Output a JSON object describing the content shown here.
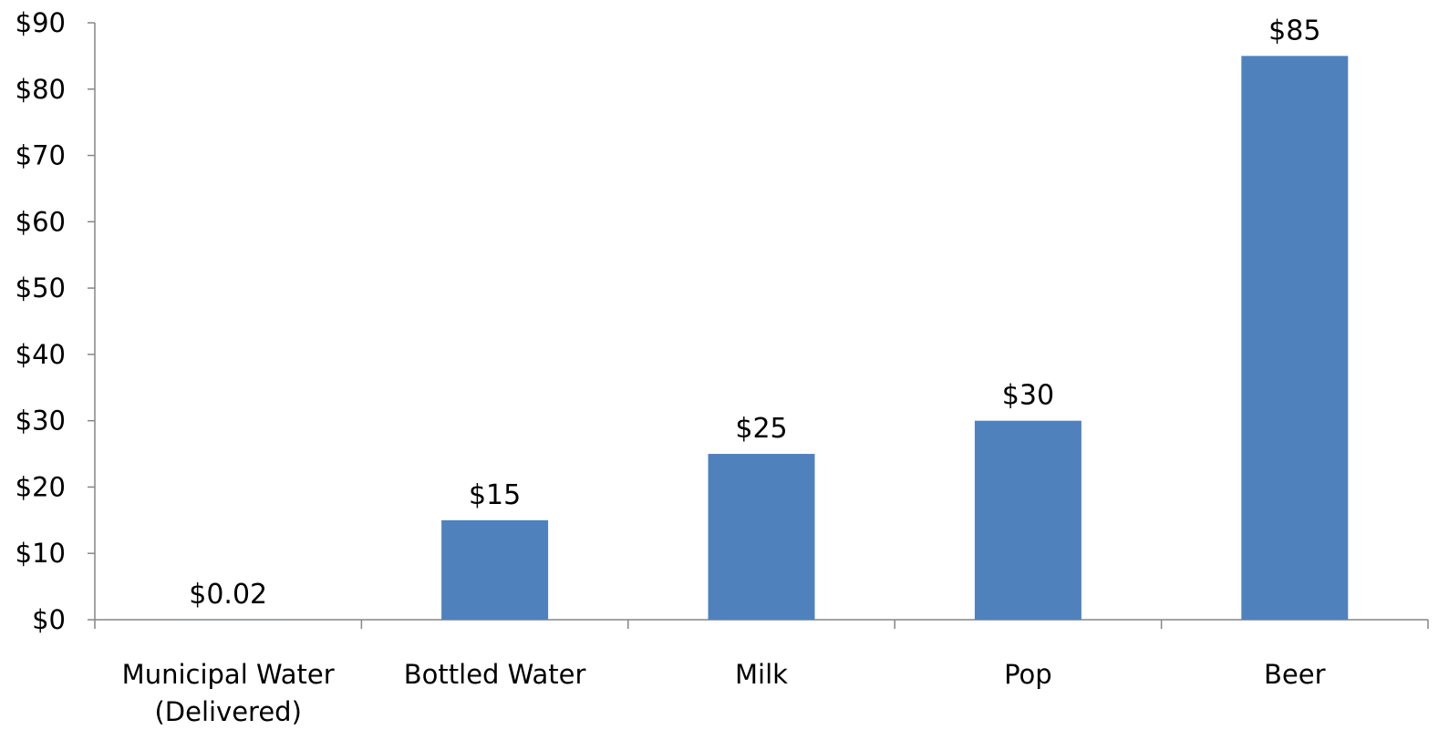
{
  "chart_data": {
    "type": "bar",
    "categories": [
      [
        "Municipal Water",
        "(Delivered)"
      ],
      [
        "Bottled Water"
      ],
      [
        "Milk"
      ],
      [
        "Pop"
      ],
      [
        "Beer"
      ]
    ],
    "values": [
      0.02,
      15,
      25,
      30,
      85
    ],
    "data_labels": [
      "$0.02",
      "$15",
      "$25",
      "$30",
      "$85"
    ],
    "y_ticks": [
      "$0",
      "$10",
      "$20",
      "$30",
      "$40",
      "$50",
      "$60",
      "$70",
      "$80",
      "$90"
    ],
    "y_tick_values": [
      0,
      10,
      20,
      30,
      40,
      50,
      60,
      70,
      80,
      90
    ],
    "ylim": [
      0,
      90
    ],
    "bar_color": "#4f81bd",
    "axis_color": "#868686",
    "grid": false,
    "legend": "none",
    "title": "",
    "xlabel": "",
    "ylabel": ""
  }
}
